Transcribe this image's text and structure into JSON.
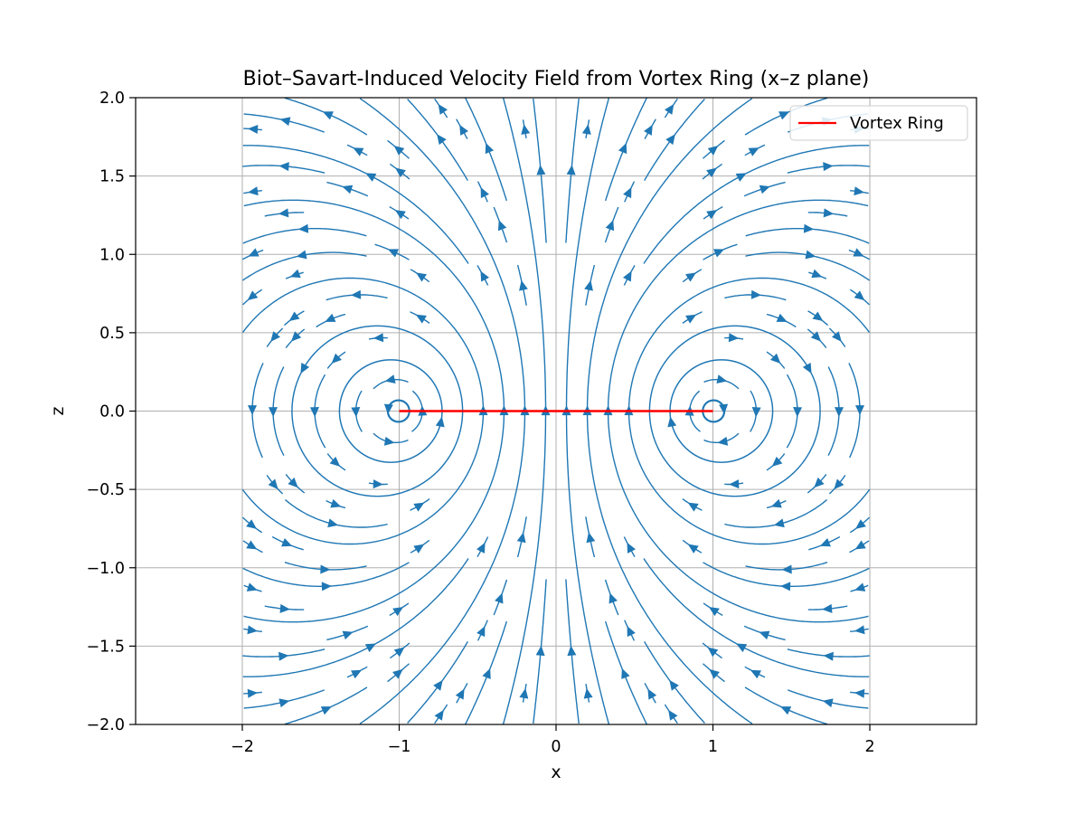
{
  "chart_data": {
    "type": "streamplot",
    "title": "Biot–Savart-Induced Velocity Field from Vortex Ring (x–z plane)",
    "xlabel": "x",
    "ylabel": "z",
    "xlim": [
      -2.68,
      2.68
    ],
    "ylim": [
      -2.0,
      2.0
    ],
    "xticks": [
      -2,
      -1,
      0,
      1,
      2
    ],
    "xtick_labels": [
      "−2",
      "−1",
      "0",
      "1",
      "2"
    ],
    "yticks": [
      2.0,
      1.5,
      1.0,
      0.5,
      0.0,
      -0.5,
      -1.0,
      -1.5,
      -2.0
    ],
    "ytick_labels": [
      "2.0",
      "1.5",
      "1.0",
      "0.5",
      "0.0",
      "−0.5",
      "−1.0",
      "−1.5",
      "−2.0"
    ],
    "grid": true,
    "field_domain": {
      "x": [
        -2,
        2
      ],
      "z": [
        -2,
        2
      ]
    },
    "vortex_cores": [
      {
        "x": -1,
        "z": 0
      },
      {
        "x": 1,
        "z": 0
      }
    ],
    "stream_color": "#1f77b4",
    "series": [
      {
        "name": "Vortex Ring",
        "x": [
          -1,
          1
        ],
        "z": [
          0,
          0
        ],
        "color": "#ff0000"
      }
    ],
    "legend": {
      "position": "top-right",
      "entries": [
        "Vortex Ring"
      ]
    }
  }
}
